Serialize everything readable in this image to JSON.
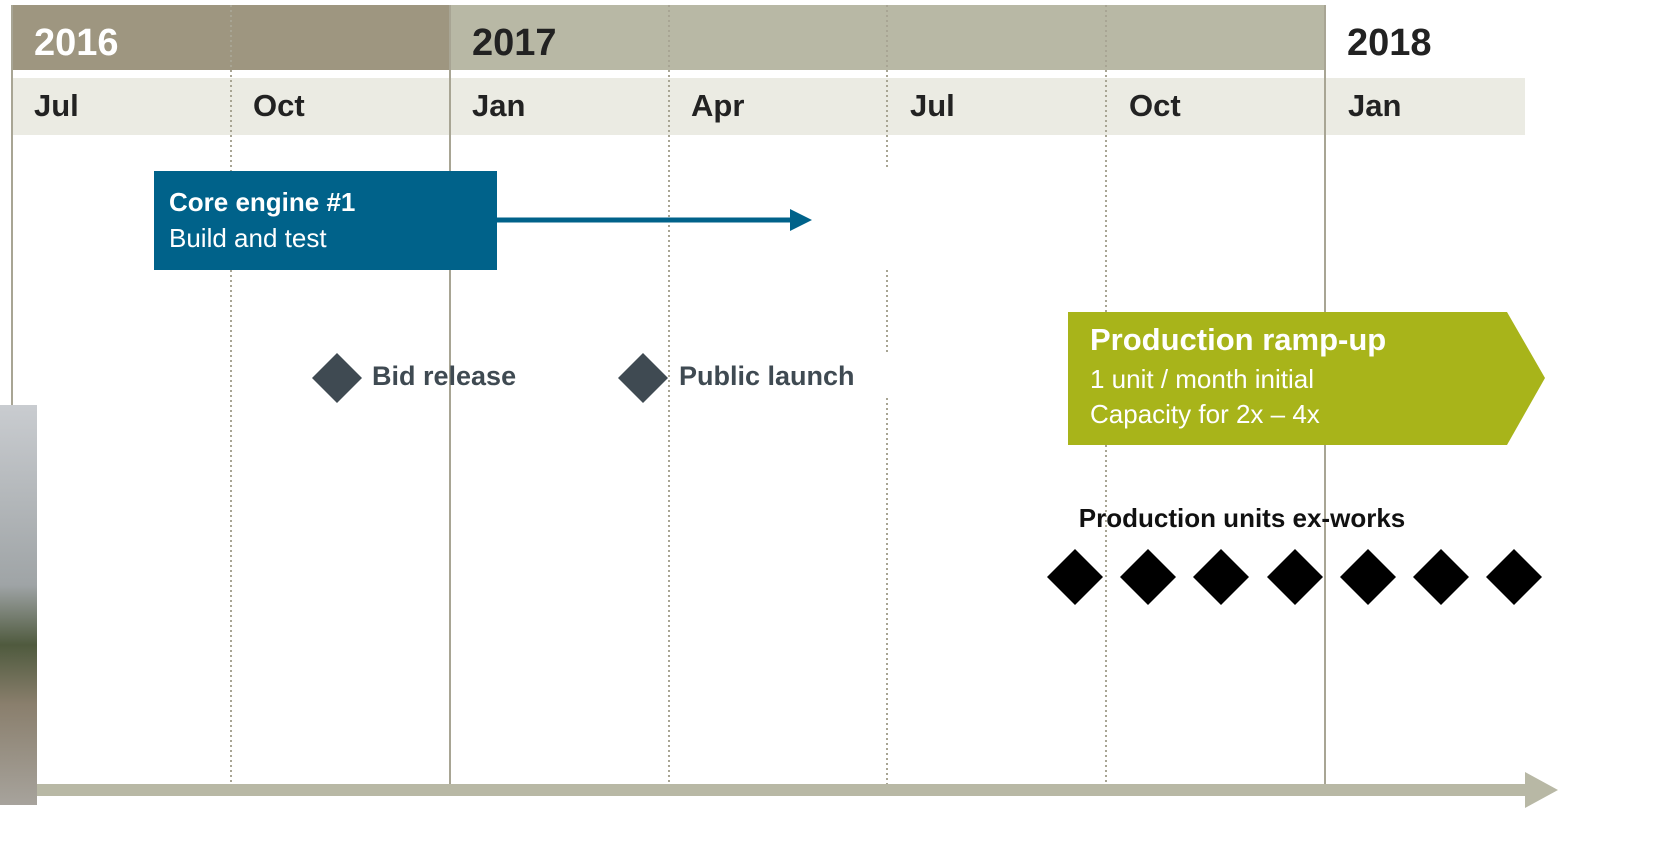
{
  "header": {
    "years": [
      "2016",
      "2017",
      "2018"
    ],
    "months": [
      "Jul",
      "Oct",
      "Jan",
      "Apr",
      "Jul",
      "Oct",
      "Jan"
    ]
  },
  "tasks": [
    {
      "title": "Core engine #1",
      "subtitle": "Build and test"
    }
  ],
  "milestones": [
    {
      "label": "Bid release"
    },
    {
      "label": "Public launch"
    }
  ],
  "ramp": {
    "title": "Production ramp-up",
    "lines": [
      "1 unit / month initial",
      "Capacity for 2x – 4x"
    ]
  },
  "units_label": "Production units ex-works"
}
